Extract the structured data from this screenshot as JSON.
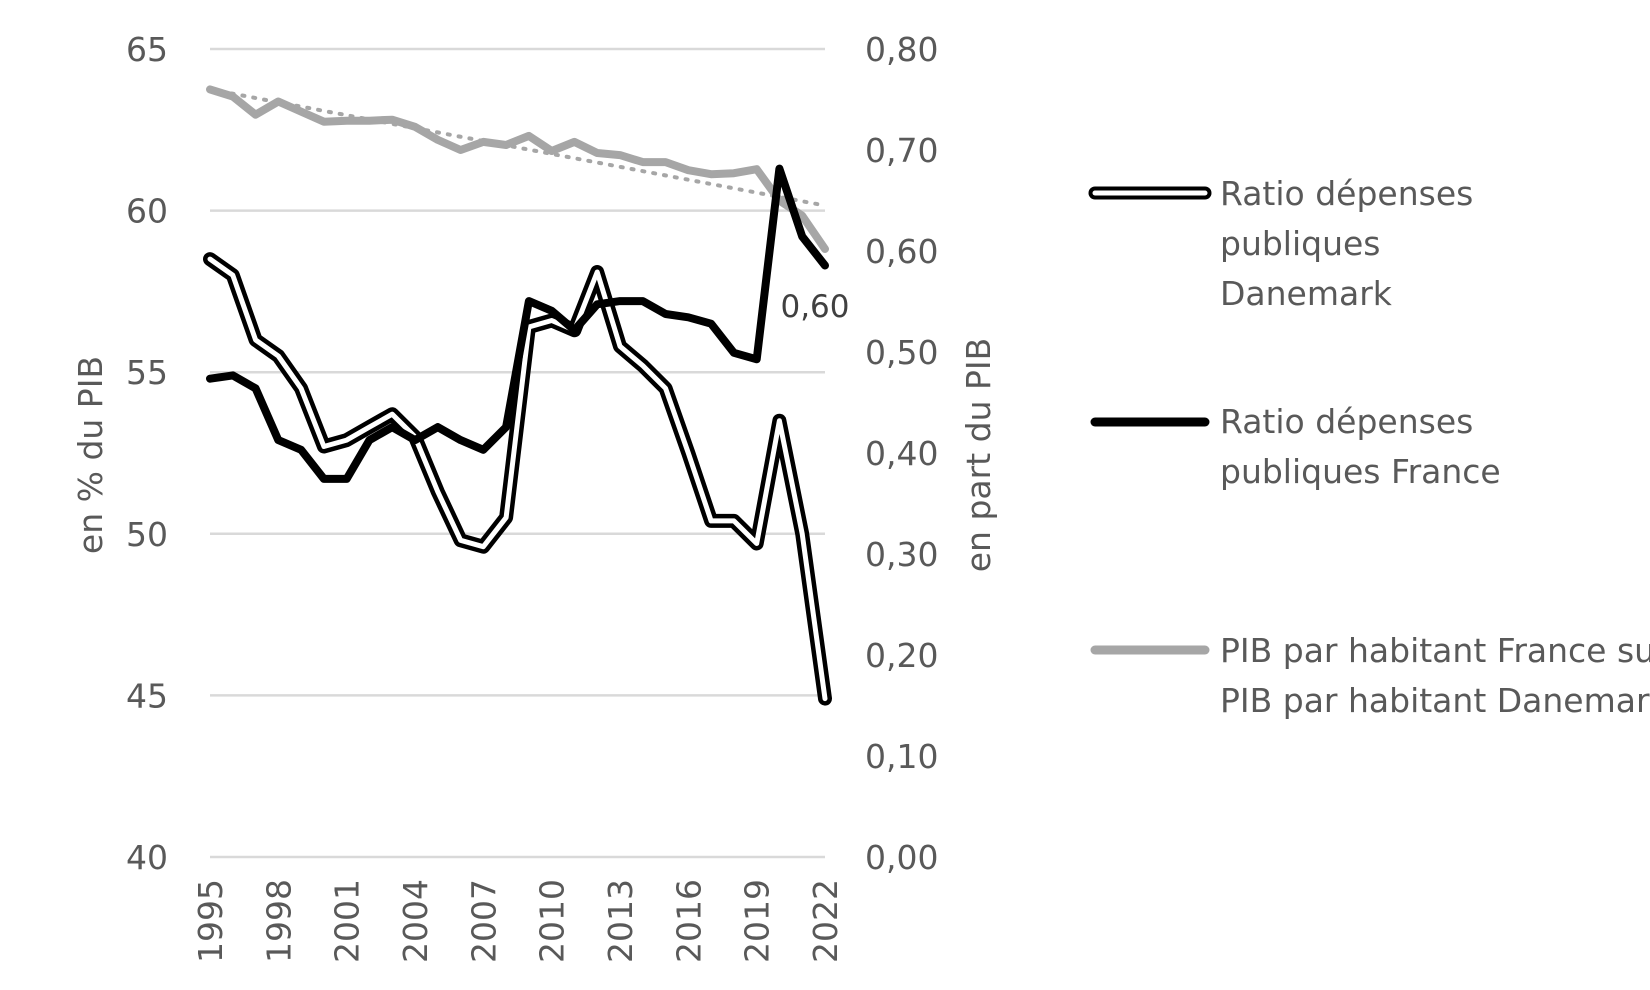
{
  "chart_data": {
    "type": "line",
    "x": [
      1995,
      1996,
      1997,
      1998,
      1999,
      2000,
      2001,
      2002,
      2003,
      2004,
      2005,
      2006,
      2007,
      2008,
      2009,
      2010,
      2011,
      2012,
      2013,
      2014,
      2015,
      2016,
      2017,
      2018,
      2019,
      2020,
      2021,
      2022
    ],
    "x_tick_labels": [
      "1995",
      "1998",
      "2001",
      "2004",
      "2007",
      "2010",
      "2013",
      "2016",
      "2019",
      "2022"
    ],
    "y_left": {
      "label": "en % du PIB",
      "ylim": [
        40,
        65
      ],
      "ticks": [
        "40",
        "45",
        "50",
        "55",
        "60",
        "65"
      ]
    },
    "y_right": {
      "label": "en part du PIB",
      "ylim": [
        0,
        0.8
      ],
      "ticks": [
        "0,00",
        "0,10",
        "0,20",
        "0,30",
        "0,40",
        "0,50",
        "0,60",
        "0,70",
        "0,80"
      ]
    },
    "grid": true,
    "legend_position": "right",
    "series": [
      {
        "name": "Ratio dépenses publiques Danemark",
        "axis": "left",
        "style": "double-black",
        "values": [
          58.5,
          58.0,
          56.0,
          55.5,
          54.5,
          52.7,
          52.9,
          53.3,
          53.7,
          53.0,
          51.3,
          49.8,
          49.6,
          50.5,
          56.4,
          56.6,
          56.3,
          58.1,
          55.8,
          55.2,
          54.5,
          52.5,
          50.4,
          50.4,
          49.7,
          53.5,
          50.0,
          44.9
        ]
      },
      {
        "name": "Ratio dépenses publiques France",
        "axis": "left",
        "style": "solid-black",
        "values": [
          54.8,
          54.9,
          54.5,
          52.9,
          52.6,
          51.7,
          51.7,
          52.9,
          53.3,
          52.9,
          53.3,
          52.9,
          52.6,
          53.3,
          57.2,
          56.9,
          56.3,
          57.1,
          57.2,
          57.2,
          56.8,
          56.7,
          56.5,
          55.6,
          55.4,
          61.3,
          59.2,
          58.3
        ]
      },
      {
        "name": "PIB par habitant France sur PIB par habitant Danemark",
        "axis": "right",
        "style": "solid-gray",
        "values": [
          0.76,
          0.753,
          0.735,
          0.748,
          0.738,
          0.728,
          0.729,
          0.729,
          0.73,
          0.723,
          0.71,
          0.7,
          0.708,
          0.705,
          0.714,
          0.699,
          0.708,
          0.697,
          0.695,
          0.688,
          0.688,
          0.68,
          0.676,
          0.677,
          0.681,
          0.65,
          0.635,
          0.602
        ],
        "trendline": {
          "style": "dotted",
          "start": 0.76,
          "end": 0.645
        }
      }
    ],
    "annotations": [
      {
        "text": "0,60",
        "x": 2022,
        "series": "PIB par habitant France sur PIB par habitant Danemark"
      }
    ],
    "colors": {
      "black": "#000000",
      "gray": "#a6a6a6",
      "grid": "#d9d9d9",
      "text": "#595959"
    }
  }
}
